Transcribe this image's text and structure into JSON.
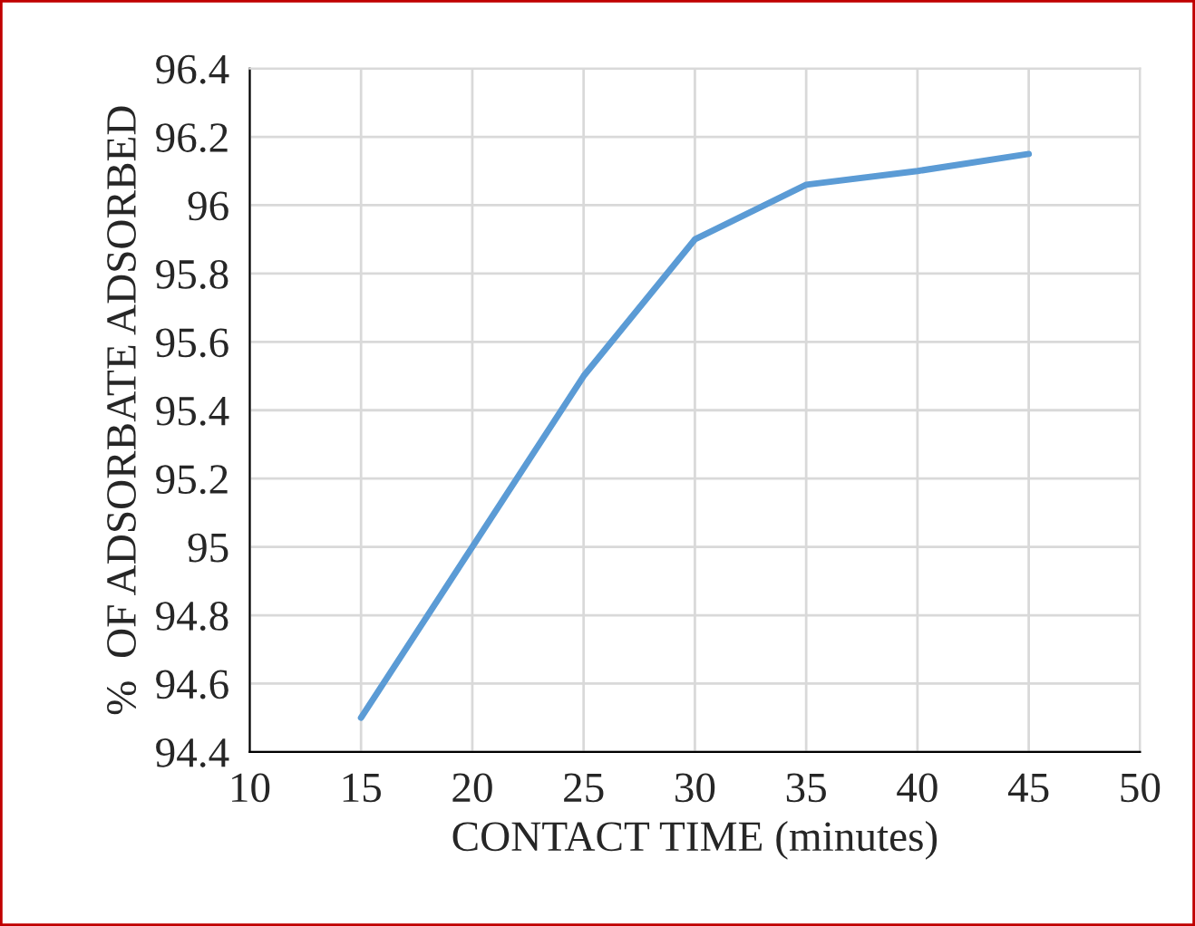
{
  "chart_data": {
    "type": "line",
    "xlabel": "CONTACT TIME (minutes)",
    "ylabel": "%  OF ADSORBATE ADSORBED",
    "x": [
      15,
      20,
      25,
      30,
      35,
      40,
      45
    ],
    "series": [
      {
        "color": "#5b9bd5",
        "values": [
          94.5,
          95.0,
          95.5,
          95.9,
          96.06,
          96.1,
          96.15
        ]
      }
    ],
    "xlim": [
      10,
      50
    ],
    "xticks": [
      10,
      15,
      20,
      25,
      30,
      35,
      40,
      45,
      50
    ],
    "ylim": [
      94.4,
      96.4
    ],
    "yticks": [
      94.4,
      94.6,
      94.8,
      95,
      95.2,
      95.4,
      95.6,
      95.8,
      96,
      96.2,
      96.4
    ],
    "grid": true,
    "legend": false,
    "marker": "none",
    "line_style": "solid"
  }
}
